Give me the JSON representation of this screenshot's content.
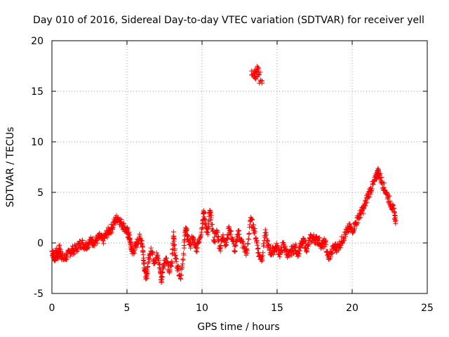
{
  "chart_data": {
    "type": "scatter",
    "title": "Day 010 of 2016, Sidereal Day-to-day VTEC variation (SDTVAR) for receiver yell",
    "xlabel": "GPS time / hours",
    "ylabel": "SDTVAR / TECUs",
    "xlim": [
      0,
      25
    ],
    "ylim": [
      -5,
      20
    ],
    "x_ticks": [
      0,
      5,
      10,
      15,
      20,
      25
    ],
    "y_ticks": [
      -5,
      0,
      5,
      10,
      15,
      20
    ],
    "x_tick_labels": [
      "0",
      "5",
      "10",
      "15",
      "20",
      "25"
    ],
    "y_tick_labels": [
      "-5",
      "0",
      "5",
      "10",
      "15",
      "20"
    ],
    "grid": true,
    "marker": "+",
    "color": "#ff0000",
    "series": [
      {
        "name": "SDTVAR",
        "points": [
          [
            0.0,
            -0.8
          ],
          [
            0.1,
            -1.2
          ],
          [
            0.2,
            -1.5
          ],
          [
            0.3,
            -0.9
          ],
          [
            0.4,
            -1.4
          ],
          [
            0.5,
            -0.5
          ],
          [
            0.6,
            -1.1
          ],
          [
            0.8,
            -1.6
          ],
          [
            1.0,
            -1.3
          ],
          [
            1.2,
            -0.9
          ],
          [
            1.4,
            -0.7
          ],
          [
            1.6,
            -0.6
          ],
          [
            1.8,
            -0.2
          ],
          [
            2.0,
            0.0
          ],
          [
            2.2,
            -0.3
          ],
          [
            2.4,
            -0.1
          ],
          [
            2.6,
            0.2
          ],
          [
            2.8,
            0.1
          ],
          [
            3.0,
            0.3
          ],
          [
            3.2,
            0.6
          ],
          [
            3.4,
            0.2
          ],
          [
            3.6,
            0.8
          ],
          [
            3.8,
            1.2
          ],
          [
            4.0,
            1.5
          ],
          [
            4.2,
            2.2
          ],
          [
            4.4,
            2.5
          ],
          [
            4.6,
            2.0
          ],
          [
            4.8,
            1.6
          ],
          [
            5.0,
            1.2
          ],
          [
            5.1,
            0.8
          ],
          [
            5.2,
            0.3
          ],
          [
            5.3,
            -0.6
          ],
          [
            5.4,
            -0.9
          ],
          [
            5.6,
            -0.3
          ],
          [
            5.8,
            0.5
          ],
          [
            6.0,
            0.2
          ],
          [
            6.1,
            -1.5
          ],
          [
            6.2,
            -2.8
          ],
          [
            6.3,
            -3.5
          ],
          [
            6.4,
            -2.0
          ],
          [
            6.6,
            -0.5
          ],
          [
            6.8,
            -1.8
          ],
          [
            7.0,
            -1.2
          ],
          [
            7.2,
            -2.5
          ],
          [
            7.3,
            -3.8
          ],
          [
            7.4,
            -2.2
          ],
          [
            7.6,
            -1.5
          ],
          [
            7.8,
            -2.8
          ],
          [
            8.0,
            -2.0
          ],
          [
            8.1,
            1.1
          ],
          [
            8.2,
            -1.2
          ],
          [
            8.4,
            -2.6
          ],
          [
            8.6,
            -3.2
          ],
          [
            8.8,
            -0.5
          ],
          [
            8.9,
            1.5
          ],
          [
            9.0,
            0.8
          ],
          [
            9.2,
            -0.2
          ],
          [
            9.4,
            0.5
          ],
          [
            9.6,
            -0.8
          ],
          [
            9.8,
            0.3
          ],
          [
            10.0,
            1.5
          ],
          [
            10.1,
            3.2
          ],
          [
            10.2,
            2.0
          ],
          [
            10.4,
            1.0
          ],
          [
            10.5,
            3.0
          ],
          [
            10.6,
            2.5
          ],
          [
            10.8,
            0.2
          ],
          [
            11.0,
            1.2
          ],
          [
            11.2,
            -0.6
          ],
          [
            11.4,
            0.8
          ],
          [
            11.6,
            -0.2
          ],
          [
            11.8,
            1.5
          ],
          [
            12.0,
            0.5
          ],
          [
            12.2,
            -0.8
          ],
          [
            12.4,
            1.2
          ],
          [
            12.6,
            0.2
          ],
          [
            12.8,
            -0.5
          ],
          [
            13.0,
            -1.0
          ],
          [
            13.2,
            2.2
          ],
          [
            13.4,
            1.8
          ],
          [
            13.6,
            0.5
          ],
          [
            13.8,
            -1.3
          ],
          [
            14.0,
            -1.5
          ],
          [
            14.2,
            1.0
          ],
          [
            14.4,
            -0.3
          ],
          [
            14.6,
            -1.0
          ],
          [
            14.8,
            -0.6
          ],
          [
            15.0,
            -0.4
          ],
          [
            15.2,
            -1.1
          ],
          [
            15.4,
            -0.2
          ],
          [
            15.6,
            -0.8
          ],
          [
            15.8,
            -1.3
          ],
          [
            16.0,
            -0.7
          ],
          [
            16.2,
            -0.5
          ],
          [
            16.4,
            -1.0
          ],
          [
            16.6,
            -0.2
          ],
          [
            16.8,
            0.1
          ],
          [
            17.0,
            -0.6
          ],
          [
            17.2,
            0.4
          ],
          [
            17.4,
            0.5
          ],
          [
            17.6,
            0.3
          ],
          [
            17.8,
            0.2
          ],
          [
            18.0,
            -0.3
          ],
          [
            18.2,
            0.1
          ],
          [
            18.4,
            -1.5
          ],
          [
            18.6,
            -1.0
          ],
          [
            18.8,
            -0.4
          ],
          [
            19.0,
            -0.5
          ],
          [
            19.2,
            -0.1
          ],
          [
            19.4,
            0.5
          ],
          [
            19.6,
            1.0
          ],
          [
            19.8,
            1.5
          ],
          [
            20.0,
            1.3
          ],
          [
            20.2,
            1.8
          ],
          [
            20.4,
            2.5
          ],
          [
            20.6,
            3.0
          ],
          [
            20.8,
            3.5
          ],
          [
            21.0,
            4.5
          ],
          [
            21.2,
            5.2
          ],
          [
            21.4,
            5.8
          ],
          [
            21.6,
            6.5
          ],
          [
            21.7,
            7.1
          ],
          [
            21.8,
            6.8
          ],
          [
            22.0,
            6.0
          ],
          [
            22.2,
            5.2
          ],
          [
            22.4,
            4.5
          ],
          [
            22.6,
            3.8
          ],
          [
            22.8,
            3.0
          ],
          [
            22.9,
            2.2
          ],
          [
            13.4,
            16.8
          ],
          [
            13.5,
            16.5
          ],
          [
            13.6,
            17.0
          ],
          [
            13.7,
            17.2
          ],
          [
            13.8,
            16.7
          ],
          [
            13.9,
            16.1
          ]
        ]
      }
    ]
  }
}
